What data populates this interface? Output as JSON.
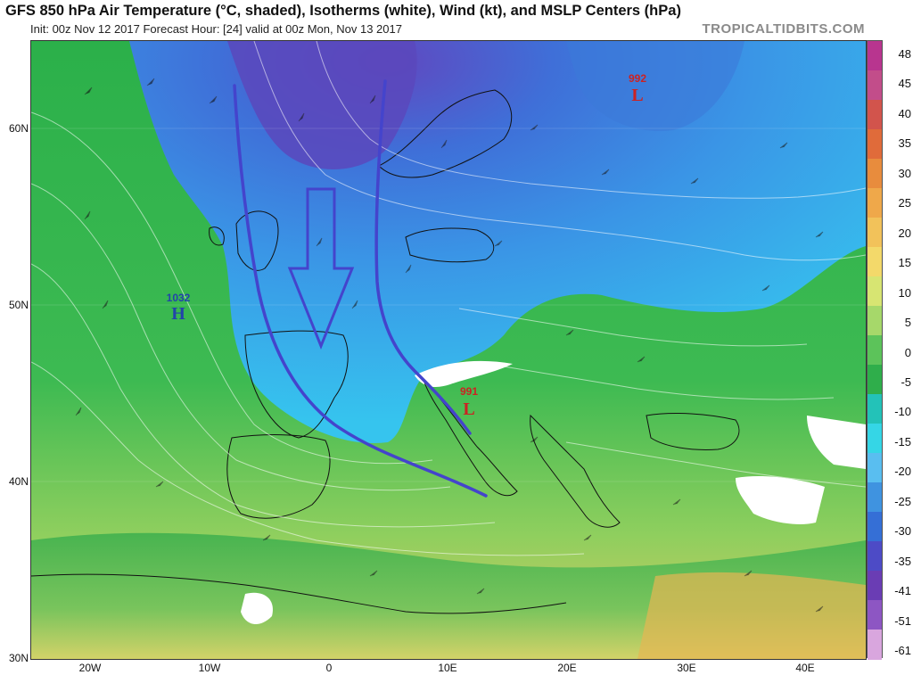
{
  "header": {
    "title": "GFS 850 hPa Air Temperature (°C, shaded), Isotherms (white), Wind (kt), and MSLP Centers (hPa)",
    "subtitle": "Init: 00z Nov 12 2017   Forecast Hour: [24]   valid at 00z Mon, Nov 13 2017",
    "brand": "TROPICALTIDBITS.COM"
  },
  "map": {
    "lat_labels": [
      "60N",
      "50N",
      "40N",
      "30N"
    ],
    "lon_labels": [
      "20W",
      "10W",
      "0",
      "10E",
      "20E",
      "30E",
      "40E"
    ],
    "pressure_centers": [
      {
        "type": "H",
        "value": "1032",
        "color": "#2244aa"
      },
      {
        "type": "L",
        "value": "992",
        "color": "#cc2222"
      },
      {
        "type": "L",
        "value": "991",
        "color": "#cc2222"
      }
    ],
    "annotations": {
      "arrow_color": "#4444cc",
      "description_icon": "cold-air-flow-arrow"
    }
  },
  "colorbar": {
    "labels": [
      "48",
      "45",
      "40",
      "35",
      "30",
      "25",
      "20",
      "15",
      "10",
      "5",
      "0",
      "-5",
      "-10",
      "-15",
      "-20",
      "-25",
      "-30",
      "-35",
      "-41",
      "-51",
      "-61"
    ],
    "colors": [
      "#b8358f",
      "#c24d8a",
      "#d2544c",
      "#e06b3a",
      "#e88c3d",
      "#efa84a",
      "#f2c25a",
      "#f3d96a",
      "#d7e572",
      "#a6d86a",
      "#5cc35a",
      "#2fae4b",
      "#23c2b8",
      "#35d6e6",
      "#59bef0",
      "#3f93e0",
      "#356fd6",
      "#4d4bc6",
      "#6a3db4",
      "#8d56c3",
      "#d9a6de"
    ]
  }
}
